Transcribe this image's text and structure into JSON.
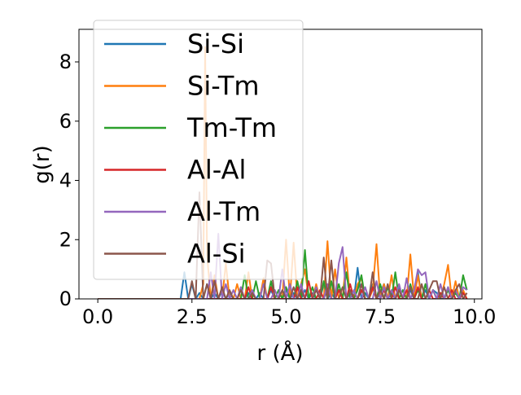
{
  "chart_data": {
    "type": "line",
    "title": "",
    "xlabel": "r (Å)",
    "ylabel": "g(r)",
    "xlim": [
      -0.5,
      10.2
    ],
    "ylim": [
      0,
      9.1
    ],
    "xticks": [
      0.0,
      2.5,
      5.0,
      7.5,
      10.0
    ],
    "xtick_labels": [
      "0.0",
      "2.5",
      "5.0",
      "7.5",
      "10.0"
    ],
    "yticks": [
      0,
      2,
      4,
      6,
      8
    ],
    "ytick_labels": [
      "0",
      "2",
      "4",
      "6",
      "8"
    ],
    "grid": false,
    "legend_position": "top-left",
    "series": [
      {
        "name": "Si-Si",
        "color": "#1f77b4",
        "x": [
          0,
          2.2,
          2.3,
          2.4,
          2.5,
          2.6,
          2.7,
          2.8,
          2.9,
          3.0,
          3.1,
          3.2,
          3.3,
          3.4,
          3.5,
          3.6,
          3.7,
          3.8,
          3.9,
          4.0,
          4.1,
          4.2,
          4.3,
          4.4,
          4.5,
          4.6,
          4.7,
          4.8,
          4.9,
          5.0,
          5.1,
          5.2,
          5.3,
          5.4,
          5.5,
          5.6,
          5.7,
          5.8,
          5.9,
          6.0,
          6.1,
          6.2,
          6.3,
          6.4,
          6.5,
          6.6,
          6.7,
          6.8,
          6.9,
          7.0,
          7.1,
          7.2,
          7.3,
          7.4,
          7.5,
          7.6,
          7.7,
          7.8,
          7.9,
          8.0,
          8.1,
          8.2,
          8.3,
          8.4,
          8.5,
          8.6,
          8.7,
          8.8,
          8.9,
          9.0,
          9.1,
          9.2,
          9.3,
          9.4,
          9.5,
          9.6,
          9.7,
          9.8
        ],
        "y": [
          0,
          0,
          0.9,
          0,
          0.5,
          0,
          0.2,
          0,
          0.5,
          0,
          0.2,
          0,
          0.3,
          0,
          0.2,
          0,
          0,
          0.3,
          0,
          0.2,
          0,
          0,
          0.2,
          0,
          0,
          0.3,
          0,
          0,
          0,
          0.3,
          0,
          0.2,
          0,
          0,
          0.3,
          0,
          0.2,
          0,
          0,
          0.5,
          0,
          0.2,
          0,
          0.3,
          0,
          0,
          0.2,
          0,
          1.05,
          0,
          0.2,
          0,
          0.5,
          0,
          0.2,
          0.5,
          0,
          0.2,
          0,
          0.4,
          0,
          0,
          0.3,
          0,
          0.9,
          0,
          0.3,
          0,
          0.3,
          0.2,
          0,
          0,
          0.4,
          0,
          0.3,
          0,
          0.2,
          0
        ]
      },
      {
        "name": "Si-Tm",
        "color": "#ff7f0e",
        "x": [
          0,
          2.7,
          2.8,
          2.85,
          2.9,
          3.0,
          3.1,
          3.2,
          3.3,
          3.4,
          3.5,
          3.6,
          3.7,
          3.8,
          3.9,
          4.0,
          4.1,
          4.2,
          4.3,
          4.4,
          4.5,
          4.6,
          4.7,
          4.8,
          4.9,
          5.0,
          5.1,
          5.2,
          5.3,
          5.4,
          5.5,
          5.6,
          5.7,
          5.8,
          5.9,
          6.0,
          6.1,
          6.2,
          6.3,
          6.4,
          6.5,
          6.6,
          6.7,
          6.8,
          6.9,
          7.0,
          7.1,
          7.2,
          7.3,
          7.4,
          7.5,
          7.6,
          7.7,
          7.8,
          7.9,
          8.0,
          8.1,
          8.2,
          8.3,
          8.4,
          8.5,
          8.6,
          8.7,
          8.8,
          8.9,
          9.0,
          9.1,
          9.2,
          9.3,
          9.4,
          9.5,
          9.6,
          9.7,
          9.8
        ],
        "y": [
          0,
          0,
          0.5,
          8.5,
          1.5,
          0,
          0.8,
          0,
          0,
          1.2,
          0,
          0,
          0.5,
          0,
          0,
          0.9,
          0,
          0,
          0,
          0.7,
          0,
          0,
          0,
          0,
          0,
          2.0,
          0,
          1.9,
          0,
          0.5,
          1.0,
          0,
          0,
          0.5,
          0,
          0,
          1.95,
          0,
          1.0,
          0,
          0,
          1.4,
          0,
          0,
          0.5,
          0.7,
          0,
          0,
          0.3,
          1.85,
          0,
          0.5,
          0,
          0.8,
          0,
          0.3,
          0,
          0,
          1.5,
          0,
          0.8,
          0,
          0.5,
          0,
          0.3,
          0,
          0,
          0.5,
          1.15,
          0,
          0.6,
          0,
          0.3,
          0
        ]
      },
      {
        "name": "Tm-Tm",
        "color": "#2ca02c",
        "x": [
          0,
          3.8,
          3.9,
          4.0,
          4.1,
          4.2,
          4.3,
          4.4,
          4.5,
          4.6,
          4.7,
          4.8,
          4.9,
          5.0,
          5.1,
          5.2,
          5.3,
          5.4,
          5.5,
          5.6,
          5.7,
          5.8,
          5.9,
          6.0,
          6.1,
          6.2,
          6.3,
          6.4,
          6.5,
          6.6,
          6.7,
          6.8,
          6.9,
          7.0,
          7.1,
          7.2,
          7.3,
          7.4,
          7.5,
          7.6,
          7.7,
          7.8,
          7.9,
          8.0,
          8.1,
          8.2,
          8.3,
          8.4,
          8.5,
          8.6,
          8.7,
          8.8,
          8.9,
          9.0,
          9.1,
          9.2,
          9.3,
          9.4,
          9.5,
          9.6,
          9.7,
          9.8
        ],
        "y": [
          0,
          0,
          0.8,
          0,
          0,
          0.6,
          0,
          0,
          0,
          0.6,
          0,
          0.3,
          0,
          0.4,
          0,
          0,
          0.6,
          0,
          1.65,
          0,
          0.4,
          0,
          0,
          0.6,
          0,
          0.6,
          0,
          0.5,
          0,
          0.9,
          0,
          0,
          0.3,
          0.8,
          0,
          0,
          0.4,
          0,
          0.5,
          0,
          0.4,
          0,
          0.9,
          0,
          0.3,
          0,
          0.5,
          0,
          0.3,
          0,
          0.5,
          0,
          0.3,
          0,
          0.2,
          0,
          0.3,
          0,
          0.2,
          0,
          0.8,
          0.3
        ]
      },
      {
        "name": "Al-Al",
        "color": "#d62728",
        "x": [
          0,
          3.9,
          4.0,
          4.1,
          4.2,
          4.3,
          4.4,
          4.5,
          4.6,
          4.7,
          4.8,
          4.9,
          5.0,
          5.1,
          5.2,
          5.3,
          5.4,
          5.5,
          5.6,
          5.7,
          5.8,
          5.9,
          6.0,
          6.1,
          6.2,
          6.3,
          6.4,
          6.5,
          6.6,
          6.7,
          6.8,
          6.9,
          7.0,
          7.1,
          7.2,
          7.3,
          7.4,
          7.5,
          7.6,
          7.7,
          7.8,
          7.9,
          8.0,
          8.1,
          8.2,
          8.3,
          8.4,
          8.5,
          8.6,
          8.7,
          8.8,
          8.9,
          9.0,
          9.1,
          9.2,
          9.3,
          9.4,
          9.5,
          9.6,
          9.7,
          9.8
        ],
        "y": [
          0,
          0,
          0.4,
          0,
          0,
          0,
          0,
          0,
          0.4,
          0,
          0,
          0,
          0,
          0,
          0,
          0.4,
          0,
          0,
          0.6,
          0,
          0,
          0.3,
          0,
          0.4,
          0,
          0,
          0.3,
          0,
          0,
          0.5,
          0,
          0,
          0.3,
          0,
          0,
          0.4,
          0,
          0,
          0.3,
          0,
          0,
          0.4,
          0,
          0,
          0.3,
          0,
          0,
          0.4,
          0,
          0,
          0.3,
          0,
          0,
          0.2,
          0,
          0,
          0.3,
          0,
          0,
          0.2,
          0
        ]
      },
      {
        "name": "Al-Tm",
        "color": "#9467bd",
        "x": [
          0,
          2.9,
          3.0,
          3.1,
          3.2,
          3.3,
          3.4,
          3.5,
          3.6,
          3.7,
          3.8,
          3.9,
          4.0,
          4.1,
          4.2,
          4.3,
          4.4,
          4.5,
          4.6,
          4.7,
          4.8,
          4.9,
          5.0,
          5.1,
          5.2,
          5.3,
          5.4,
          5.5,
          5.6,
          5.7,
          5.8,
          5.9,
          6.0,
          6.1,
          6.2,
          6.3,
          6.4,
          6.5,
          6.6,
          6.7,
          6.8,
          6.9,
          7.0,
          7.1,
          7.2,
          7.3,
          7.4,
          7.5,
          7.6,
          7.7,
          7.8,
          7.9,
          8.0,
          8.1,
          8.2,
          8.3,
          8.4,
          8.5,
          8.6,
          8.7,
          8.8,
          8.9,
          9.0,
          9.1,
          9.2,
          9.3,
          9.4,
          9.5,
          9.6,
          9.7,
          9.8
        ],
        "y": [
          0,
          0,
          0.9,
          0,
          2.2,
          0,
          0.5,
          0,
          0.3,
          0,
          0.4,
          0,
          0,
          0.3,
          0,
          0,
          0.5,
          0,
          0,
          0.3,
          0,
          1.0,
          0,
          0.5,
          0,
          0,
          0.5,
          0,
          0,
          0,
          0.4,
          0,
          0,
          0.5,
          0,
          0,
          1.2,
          1.75,
          0,
          0,
          0.3,
          0,
          0,
          0.4,
          0,
          0,
          0.6,
          0,
          0.4,
          0,
          0.3,
          0,
          0.5,
          0,
          0.7,
          0,
          0.3,
          1.0,
          0.8,
          0.9,
          0,
          0.3,
          0,
          0.5,
          0,
          0.4,
          0,
          0.3,
          0,
          0.4,
          0.3
        ]
      },
      {
        "name": "Al-Si",
        "color": "#8c564b",
        "x": [
          0,
          2.4,
          2.5,
          2.6,
          2.7,
          2.8,
          2.9,
          3.0,
          3.1,
          3.2,
          3.3,
          3.4,
          3.5,
          3.6,
          3.7,
          3.8,
          3.9,
          4.0,
          4.1,
          4.2,
          4.3,
          4.4,
          4.5,
          4.6,
          4.7,
          4.8,
          4.9,
          5.0,
          5.1,
          5.2,
          5.3,
          5.4,
          5.5,
          5.6,
          5.7,
          5.8,
          5.9,
          6.0,
          6.1,
          6.2,
          6.3,
          6.4,
          6.5,
          6.6,
          6.7,
          6.8,
          6.9,
          7.0,
          7.1,
          7.2,
          7.3,
          7.4,
          7.5,
          7.6,
          7.7,
          7.8,
          7.9,
          8.0,
          8.1,
          8.2,
          8.3,
          8.4,
          8.5,
          8.6,
          8.7,
          8.8,
          8.9,
          9.0,
          9.1,
          9.2,
          9.3,
          9.4,
          9.5,
          9.6,
          9.7,
          9.8
        ],
        "y": [
          0,
          0,
          0.6,
          0,
          3.6,
          0,
          0.5,
          0,
          0.6,
          0,
          0.4,
          0,
          0.3,
          0,
          0,
          0.3,
          0,
          0,
          0.2,
          0,
          0,
          0,
          1.3,
          1.2,
          0,
          0,
          0.3,
          0,
          0,
          0.4,
          0,
          0.3,
          0,
          0,
          0,
          0.3,
          0,
          1.4,
          0,
          1.3,
          0,
          0,
          0.4,
          0,
          0.3,
          0,
          0,
          0.5,
          0,
          0,
          0.9,
          0,
          0.3,
          0,
          0.5,
          0,
          0,
          0.3,
          0,
          0,
          0.4,
          0,
          0,
          0.5,
          0,
          0.3,
          0.6,
          0.6,
          0,
          0.4,
          0,
          0,
          0.3,
          0.5,
          0,
          0.2
        ]
      }
    ]
  }
}
